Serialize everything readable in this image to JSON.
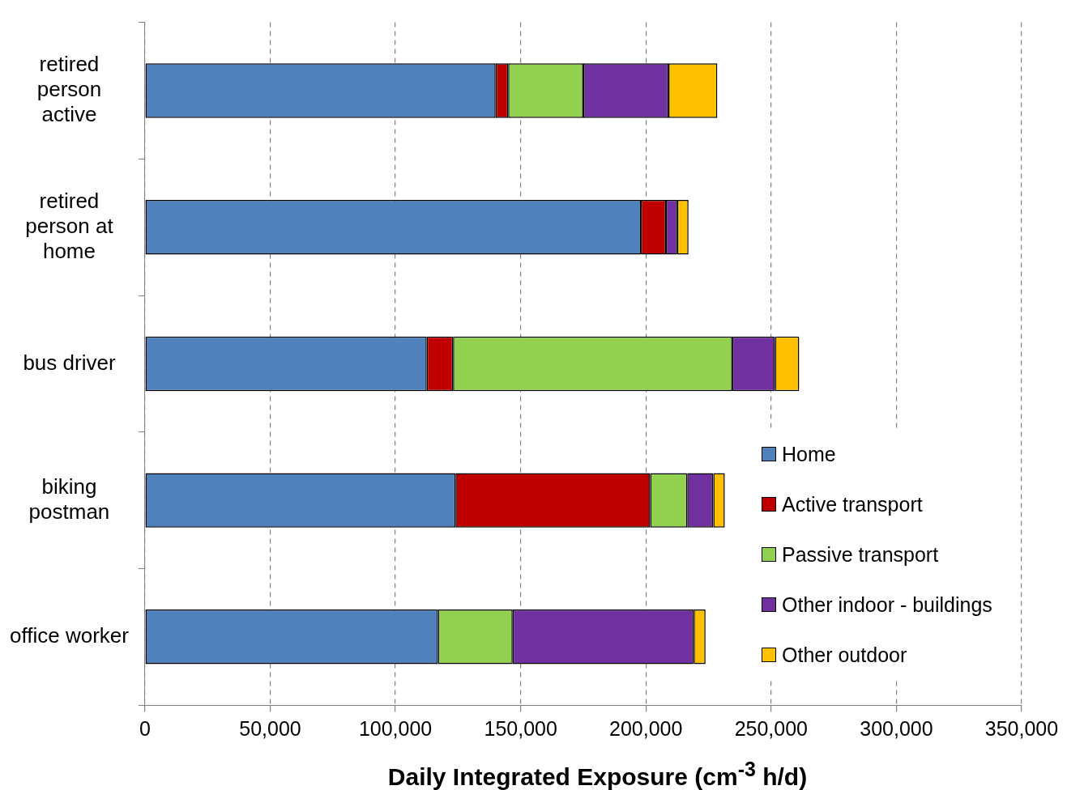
{
  "chart_data": {
    "type": "bar",
    "orientation": "horizontal",
    "stacked": true,
    "xlabel": "Daily Integrated Exposure (cm$^{-3}$ h/d)",
    "categories": [
      "retired person active",
      "retired person at home",
      "bus driver",
      "biking postman",
      "office worker"
    ],
    "series": [
      {
        "name": "Home",
        "color": "#4f81bd",
        "values": [
          140000,
          198000,
          112500,
          124000,
          117000
        ]
      },
      {
        "name": "Active transport",
        "color": "#c00000",
        "values": [
          5000,
          10000,
          10500,
          77700,
          0
        ]
      },
      {
        "name": "Passive transport",
        "color": "#92d050",
        "values": [
          30000,
          0,
          111500,
          14800,
          29800
        ]
      },
      {
        "name": "Other indoor - buildings",
        "color": "#7030a0",
        "values": [
          34000,
          4500,
          17000,
          10400,
          72300
        ]
      },
      {
        "name": "Other outdoor",
        "color": "#ffc000",
        "values": [
          19500,
          4500,
          9700,
          4600,
          4700
        ]
      }
    ],
    "xlim": [
      0,
      350000
    ],
    "xticks": [
      0,
      {
        "value": 50000,
        "label": "50,000"
      },
      {
        "value": 100000,
        "label": "100,000"
      },
      {
        "value": 150000,
        "label": "150,000"
      },
      {
        "value": 200000,
        "label": "200,000"
      },
      {
        "value": 250000,
        "label": "250,000"
      },
      {
        "value": 300000,
        "label": "300,000"
      },
      {
        "value": 350000,
        "label": "350,000"
      }
    ],
    "grid": "x",
    "legend": "bottom right"
  }
}
